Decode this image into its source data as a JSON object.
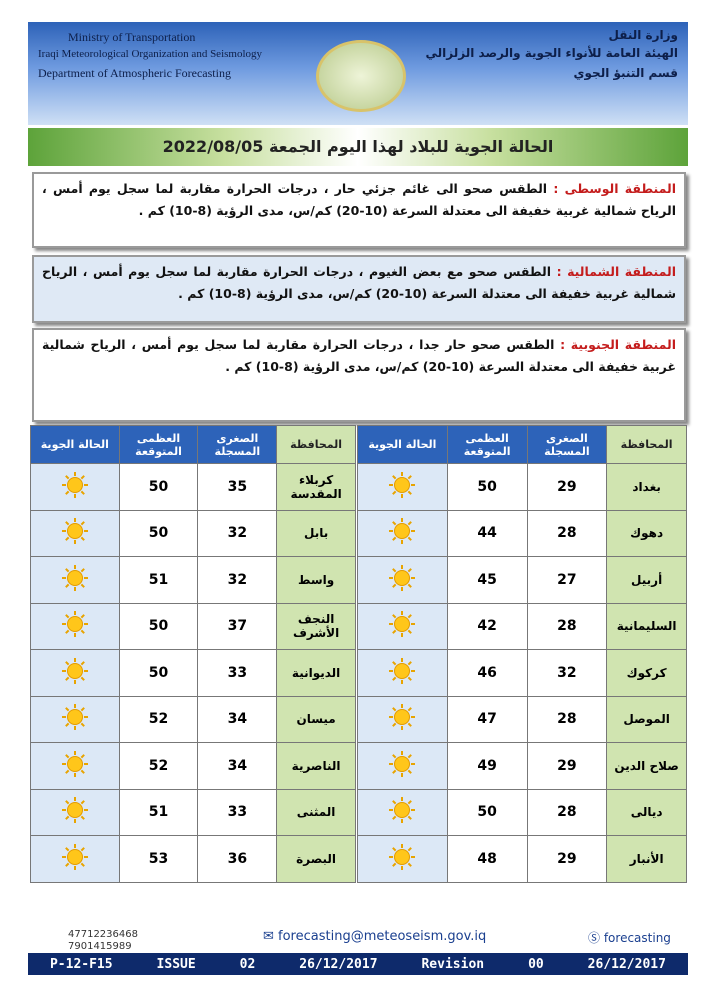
{
  "header": {
    "english": [
      "Ministry of Transportation",
      "Iraqi Meteorological Organization and Seismology",
      "Department of Atmospheric Forecasting"
    ],
    "arabic": [
      "وزارة النقل",
      "الهيئة العامة للأنواء الجوية والرصد الزلزالي",
      "قسم التنبؤ الجوي"
    ]
  },
  "title": "الحالة الجوية للبلاد لهذا اليوم الجمعة  2022/08/05",
  "regions": [
    {
      "label": "المنطقة الوسطى :",
      "text": "الطقس صحو الى غائم جزئي حار ، درجات الحرارة مقاربة لما سجل يوم أمس ، الرياح شمالية غربية خفيفة الى معتدلة السرعة (10-20) كم/س، مدى الرؤية (8-10) كم ."
    },
    {
      "label": "المنطقة الشمالية :",
      "text": "الطقس صحو مع بعض الغيوم ، درجات الحرارة مقاربة لما سجل يوم أمس ، الرياح شمالية غربية خفيفة الى معتدلة السرعة (10-20) كم/س، مدى الرؤية (8-10) كم ."
    },
    {
      "label": "المنطقة الجنوبية :",
      "text": "الطقس صحو حار جدا ، درجات الحرارة مقاربة لما سجل يوم أمس ، الرياح شمالية غربية خفيفة الى معتدلة السرعة (10-20) كم/س، مدى الرؤية (8-10) كم ."
    }
  ],
  "table": {
    "columns": [
      "المحافظة",
      "الصغرى المسجلة",
      "العظمى المتوقعة",
      "الحالة الجوية"
    ],
    "right": [
      [
        "بغداد",
        29,
        50
      ],
      [
        "دهوك",
        28,
        44
      ],
      [
        "أربيل",
        27,
        45
      ],
      [
        "السليمانية",
        28,
        42
      ],
      [
        "كركوك",
        32,
        46
      ],
      [
        "الموصل",
        28,
        47
      ],
      [
        "صلاح الدين",
        29,
        49
      ],
      [
        "ديالى",
        28,
        50
      ],
      [
        "الأنبار",
        29,
        48
      ]
    ],
    "left": [
      [
        "كربلاء المقدسة",
        35,
        50
      ],
      [
        "بابل",
        32,
        50
      ],
      [
        "واسط",
        32,
        51
      ],
      [
        "النجف الأشرف",
        37,
        50
      ],
      [
        "الديوانية",
        33,
        50
      ],
      [
        "ميسان",
        34,
        52
      ],
      [
        "الناصرية",
        34,
        52
      ],
      [
        "المثنى",
        33,
        51
      ],
      [
        "البصرة",
        36,
        53
      ]
    ]
  },
  "footer": {
    "phones": [
      "47712236468",
      "7901415989"
    ],
    "email": "forecasting@meteoseism.gov.iq",
    "skype": "forecasting",
    "form": [
      "P-12-F15",
      "ISSUE",
      "02",
      "26/12/2017",
      "Revision",
      "00",
      "26/12/2017"
    ]
  }
}
